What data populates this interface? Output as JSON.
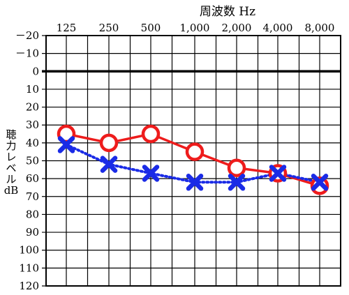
{
  "chart_data": {
    "type": "line",
    "title": "周波数 Hz",
    "ylabel": [
      "聴",
      "力",
      "レ",
      "ベ",
      "ル",
      "dB"
    ],
    "categories": [
      "125",
      "250",
      "500",
      "1,000",
      "2,000",
      "4,000",
      "8,000"
    ],
    "y_ticks": [
      "－20",
      "－10",
      "0",
      "10",
      "20",
      "30",
      "40",
      "50",
      "60",
      "70",
      "80",
      "90",
      "100",
      "110",
      "120"
    ],
    "ylim": [
      -20,
      120
    ],
    "y_inverted": true,
    "grid": true,
    "series": [
      {
        "marker": "circle",
        "line_style": "solid",
        "color": "#ee1c1c",
        "values": [
          35,
          40,
          35,
          45,
          54,
          57,
          64
        ]
      },
      {
        "marker": "x",
        "line_style": "dotted",
        "color": "#1a2be6",
        "values": [
          41,
          52,
          57,
          62,
          62,
          57,
          62
        ]
      }
    ]
  }
}
